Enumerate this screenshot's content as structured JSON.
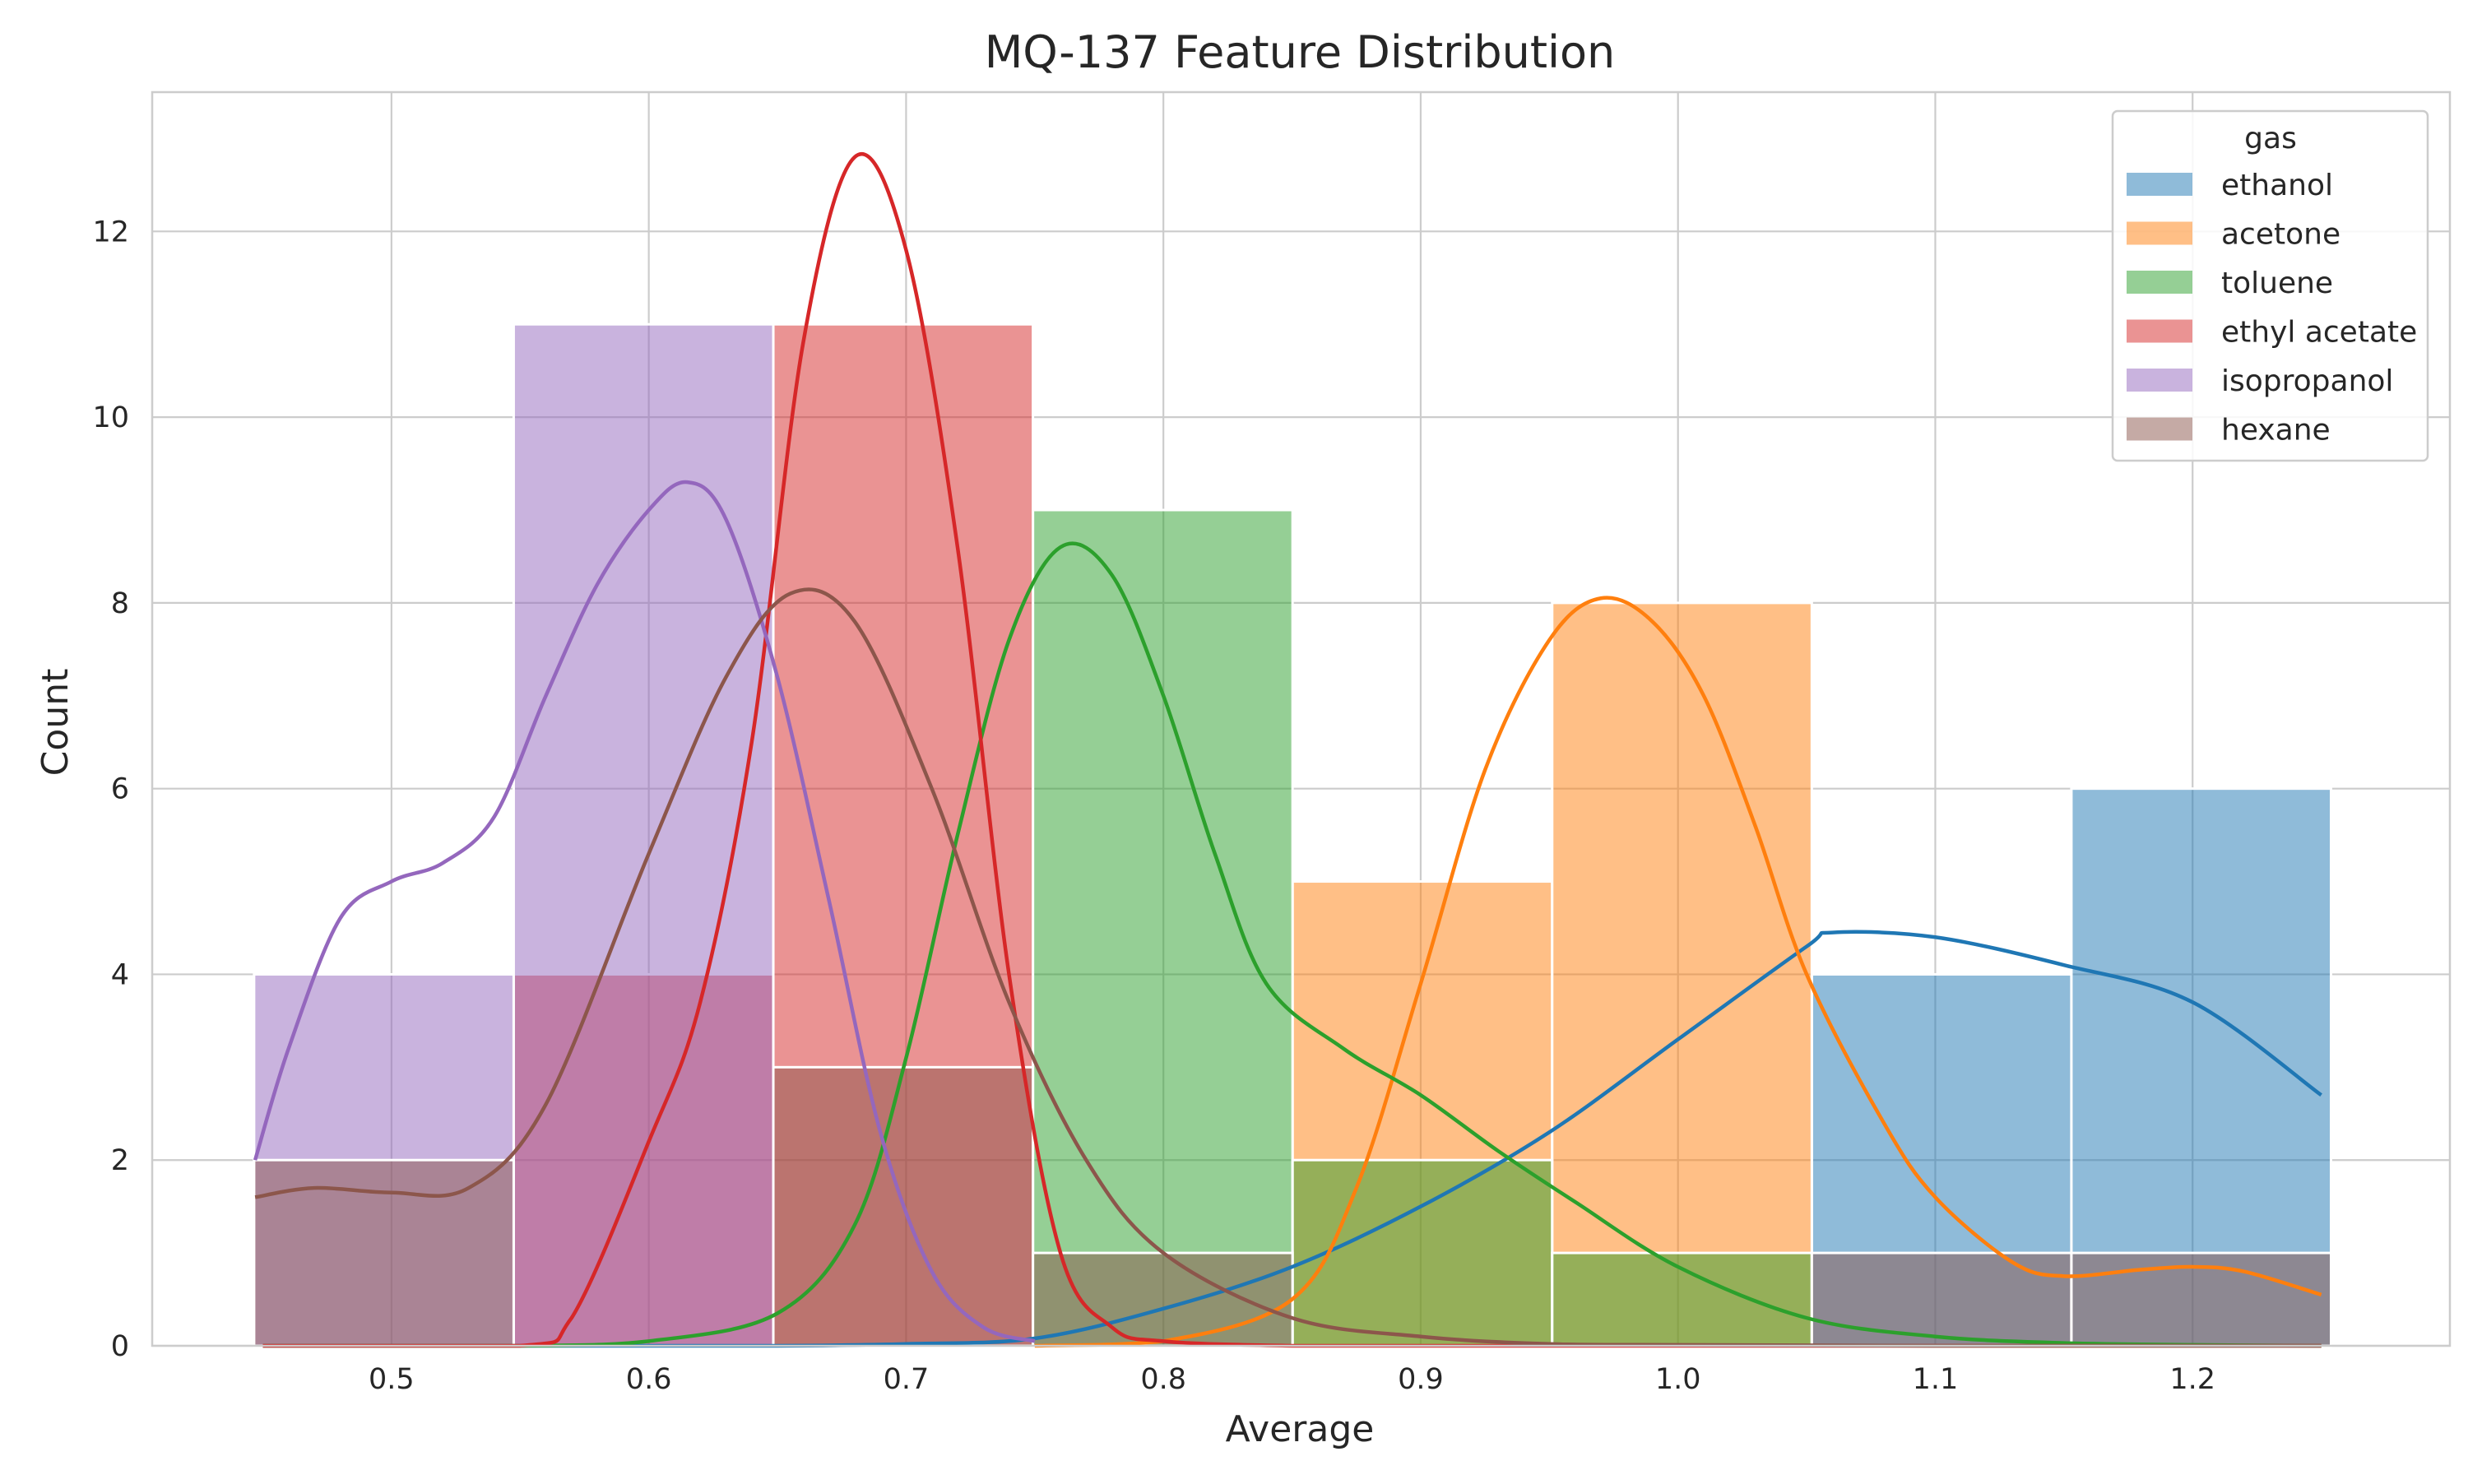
{
  "chart_data": {
    "type": "histogram",
    "title": "MQ-137 Feature Distribution",
    "xlabel": "Average",
    "ylabel": "Count",
    "xlim": [
      0.407,
      1.3
    ],
    "ylim": [
      0,
      13.5
    ],
    "xticks": [
      0.5,
      0.6,
      0.7,
      0.8,
      0.9,
      1.0,
      1.1,
      1.2
    ],
    "xtick_labels": [
      "0.5",
      "0.6",
      "0.7",
      "0.8",
      "0.9",
      "1.0",
      "1.1",
      "1.2"
    ],
    "yticks": [
      0,
      2,
      4,
      6,
      8,
      10,
      12
    ],
    "ytick_labels": [
      "0",
      "2",
      "4",
      "6",
      "8",
      "10",
      "12"
    ],
    "grid": true,
    "legend": {
      "title": "gas",
      "placement": "upper right"
    },
    "bin_edges": [
      0.4466,
      0.5475,
      0.6484,
      0.7493,
      0.8502,
      0.9511,
      1.052,
      1.1529,
      1.2538
    ],
    "series": [
      {
        "name": "ethanol",
        "color": "#1f77b4",
        "counts": [
          0,
          0,
          0,
          0,
          0,
          0,
          4,
          6
        ],
        "kde": {
          "x": [
            0.45,
            0.55,
            0.6,
            0.65,
            0.7,
            0.75,
            0.8,
            0.85,
            0.9,
            0.95,
            1.0,
            1.05,
            1.06,
            1.1,
            1.15,
            1.2,
            1.25
          ],
          "y": [
            0,
            0,
            0,
            0,
            0.02,
            0.08,
            0.4,
            0.85,
            1.5,
            2.3,
            3.3,
            4.3,
            4.45,
            4.4,
            4.1,
            3.7,
            2.7
          ]
        }
      },
      {
        "name": "acetone",
        "color": "#ff7f0e",
        "counts": [
          0,
          0,
          0,
          0,
          5,
          8,
          0,
          0
        ],
        "kde": {
          "x": [
            0.75,
            0.8,
            0.85,
            0.875,
            0.9,
            0.925,
            0.95,
            0.97,
            0.99,
            1.01,
            1.03,
            1.05,
            1.08,
            1.1,
            1.13,
            1.15,
            1.18,
            1.2,
            1.22,
            1.25
          ],
          "y": [
            0,
            0.05,
            0.5,
            1.7,
            3.9,
            6.2,
            7.6,
            8.05,
            7.8,
            7.0,
            5.6,
            4.0,
            2.4,
            1.6,
            0.9,
            0.75,
            0.82,
            0.85,
            0.8,
            0.55
          ]
        }
      },
      {
        "name": "toluene",
        "color": "#2ca02c",
        "counts": [
          0,
          0,
          0,
          9,
          2,
          1,
          0,
          0
        ],
        "kde": {
          "x": [
            0.45,
            0.55,
            0.6,
            0.65,
            0.68,
            0.7,
            0.72,
            0.74,
            0.76,
            0.78,
            0.8,
            0.82,
            0.84,
            0.87,
            0.9,
            0.93,
            0.96,
            1.0,
            1.05,
            1.1,
            1.15,
            1.2,
            1.25
          ],
          "y": [
            0,
            0,
            0.05,
            0.35,
            1.3,
            3.1,
            5.5,
            7.6,
            8.6,
            8.3,
            7.0,
            5.3,
            3.9,
            3.2,
            2.7,
            2.1,
            1.55,
            0.85,
            0.3,
            0.1,
            0.03,
            0.01,
            0
          ]
        }
      },
      {
        "name": "ethyl acetate",
        "color": "#d62728",
        "counts": [
          0,
          4,
          11,
          0,
          0,
          0,
          0,
          0
        ],
        "kde": {
          "x": [
            0.45,
            0.55,
            0.57,
            0.6,
            0.62,
            0.64,
            0.66,
            0.68,
            0.7,
            0.72,
            0.74,
            0.76,
            0.78,
            0.8,
            0.85,
            0.9,
            1.25
          ],
          "y": [
            0,
            0,
            0.3,
            2.2,
            3.7,
            6.5,
            10.8,
            12.8,
            11.8,
            8.6,
            4.0,
            1.0,
            0.2,
            0.05,
            0,
            0,
            0
          ]
        }
      },
      {
        "name": "isopropanol",
        "color": "#9467bd",
        "counts": [
          4,
          11,
          0,
          0,
          0,
          0,
          0,
          0
        ],
        "kde": {
          "x": [
            0.447,
            0.46,
            0.48,
            0.5,
            0.52,
            0.54,
            0.56,
            0.58,
            0.6,
            0.615,
            0.63,
            0.65,
            0.67,
            0.69,
            0.71,
            0.73,
            0.75
          ],
          "y": [
            2.0,
            3.2,
            4.6,
            5.0,
            5.2,
            5.7,
            7.0,
            8.2,
            9.0,
            9.3,
            8.9,
            7.2,
            4.8,
            2.3,
            0.8,
            0.2,
            0.05
          ]
        }
      },
      {
        "name": "hexane",
        "color": "#8c564b",
        "counts": [
          2,
          0,
          3,
          1,
          0,
          0,
          1,
          1
        ],
        "kde": {
          "x": [
            0.447,
            0.47,
            0.5,
            0.53,
            0.56,
            0.6,
            0.63,
            0.655,
            0.68,
            0.71,
            0.74,
            0.77,
            0.8,
            0.85,
            0.9,
            0.95,
            1.0,
            1.1,
            1.25
          ],
          "y": [
            1.6,
            1.7,
            1.65,
            1.7,
            2.6,
            5.3,
            7.2,
            8.1,
            7.8,
            6.0,
            3.7,
            2.0,
            1.0,
            0.3,
            0.1,
            0.02,
            0.01,
            0,
            0
          ]
        }
      }
    ]
  }
}
